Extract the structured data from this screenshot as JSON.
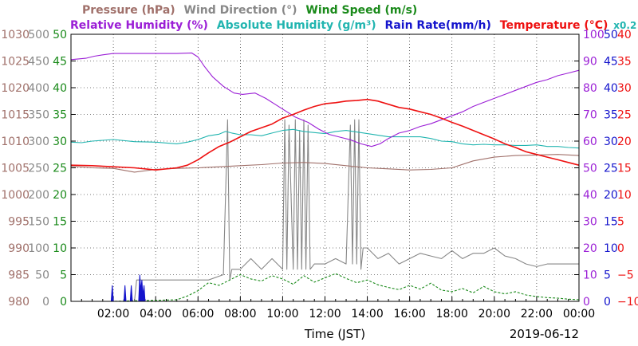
{
  "chart_data": {
    "type": "line",
    "title": "",
    "date_label": "2019-06-12",
    "xlabel": "Time (JST)",
    "x_range_hours": [
      0,
      24
    ],
    "x_ticks": [
      {
        "h": 2,
        "label": "02:00"
      },
      {
        "h": 4,
        "label": "04:00"
      },
      {
        "h": 6,
        "label": "06:00"
      },
      {
        "h": 8,
        "label": "08:00"
      },
      {
        "h": 10,
        "label": "10:00"
      },
      {
        "h": 12,
        "label": "12:00"
      },
      {
        "h": 14,
        "label": "14:00"
      },
      {
        "h": 16,
        "label": "16:00"
      },
      {
        "h": 18,
        "label": "18:00"
      },
      {
        "h": 20,
        "label": "20:00"
      },
      {
        "h": 22,
        "label": "22:00"
      },
      {
        "h": 24,
        "label": "00:00"
      }
    ],
    "legend": {
      "row1": [
        {
          "text": "Pressure (hPa)",
          "color": "#a0706a"
        },
        {
          "text": "Wind Direction (°)",
          "color": "#888888"
        },
        {
          "text": "Wind Speed (m/s)",
          "color": "#1a8a1a"
        }
      ],
      "row2": [
        {
          "text": "Relative Humidity (%)",
          "color": "#9b1fd6"
        },
        {
          "text": "Absolute Humidity (g/m³)",
          "color": "#22b5b0"
        },
        {
          "text": "Rain Rate(mm/h)",
          "color": "#1414cc"
        },
        {
          "text": "Temperature (°C)",
          "color": "#ee1111"
        },
        {
          "text": "x0.2",
          "color": "#22b5b0"
        }
      ]
    },
    "axes": {
      "pressure": {
        "color": "#a0706a",
        "range": [
          980,
          1030
        ],
        "ticks": [
          "1030",
          "1025",
          "1020",
          "1015",
          "1010",
          "1005",
          "1000",
          "995",
          "990",
          "985",
          "980"
        ]
      },
      "wind_direction": {
        "color": "#888888",
        "range": [
          0,
          500
        ],
        "ticks": [
          "500",
          "450",
          "400",
          "350",
          "300",
          "250",
          "200",
          "150",
          "100",
          "50",
          "0"
        ]
      },
      "wind_speed": {
        "color": "#1a8a1a",
        "range": [
          0,
          50
        ],
        "ticks": [
          "50",
          "45",
          "40",
          "35",
          "30",
          "25",
          "20",
          "15",
          "10",
          "5",
          "0"
        ]
      },
      "humidity": {
        "color": "#9b1fd6",
        "range": [
          0,
          100
        ],
        "ticks": [
          "100",
          "90",
          "80",
          "70",
          "60",
          "50",
          "40",
          "30",
          "20",
          "10",
          "0"
        ]
      },
      "rain_rate": {
        "color": "#1414cc",
        "range": [
          0,
          50
        ],
        "ticks": [
          "50",
          "45",
          "40",
          "35",
          "30",
          "25",
          "20",
          "15",
          "10",
          "5",
          "0"
        ]
      },
      "temperature": {
        "color": "#ee1111",
        "range": [
          -10,
          40
        ],
        "ticks": [
          "40",
          "35",
          "30",
          "25",
          "20",
          "15",
          "10",
          "5",
          "0",
          "−5",
          "−10"
        ]
      }
    },
    "series": [
      {
        "name": "Pressure (hPa)",
        "axis": "pressure",
        "color": "#a0706a",
        "x": [
          0,
          1,
          2,
          3,
          4,
          5,
          6,
          7,
          8,
          9,
          10,
          11,
          12,
          13,
          14,
          15,
          16,
          17,
          18,
          19,
          20,
          21,
          22,
          23,
          24
        ],
        "values": [
          1005.3,
          1005.0,
          1004.9,
          1004.2,
          1004.7,
          1004.9,
          1005.0,
          1005.2,
          1005.4,
          1005.6,
          1005.9,
          1006.0,
          1005.8,
          1005.4,
          1005.0,
          1004.8,
          1004.6,
          1004.7,
          1005.0,
          1006.3,
          1007.0,
          1007.3,
          1007.4,
          1007.5,
          1007.3
        ]
      },
      {
        "name": "Relative Humidity (%)",
        "axis": "humidity",
        "color": "#9b1fd6",
        "x": [
          0,
          0.7,
          1.1,
          1.5,
          2,
          3,
          4,
          5,
          5.7,
          6.0,
          6.3,
          6.7,
          7.2,
          7.7,
          8.1,
          8.7,
          9.2,
          9.7,
          10.2,
          10.6,
          11.2,
          11.7,
          12.2,
          12.7,
          13.2,
          13.7,
          14.2,
          14.6,
          15.0,
          15.5,
          16.0,
          16.5,
          17.0,
          17.5,
          18.0,
          18.5,
          19.0,
          19.5,
          20.0,
          20.5,
          21.0,
          21.5,
          22.0,
          22.5,
          23.0,
          23.5,
          24.0
        ],
        "values": [
          90.5,
          91,
          91.8,
          92.3,
          92.8,
          92.8,
          92.8,
          92.8,
          93.0,
          91.5,
          88,
          84,
          80.5,
          78,
          77.5,
          78,
          76,
          73.5,
          71,
          69,
          67,
          64.5,
          62.5,
          61.5,
          60.5,
          59,
          58,
          59,
          61,
          63,
          64,
          65.5,
          66.5,
          68,
          69.5,
          71,
          73,
          74.5,
          76,
          77.5,
          79,
          80.5,
          82,
          83,
          84.5,
          85.5,
          86.5
        ]
      },
      {
        "name": "Absolute Humidity (g/m³)",
        "axis": "wind_direction",
        "color": "#22b5b0",
        "x": [
          0,
          0.5,
          1,
          2,
          3,
          4,
          5,
          5.5,
          6,
          6.5,
          7,
          7.3,
          7.6,
          8,
          8.5,
          9,
          9.5,
          10,
          10.5,
          11,
          11.5,
          12,
          12.5,
          13,
          13.5,
          14,
          14.5,
          15,
          15.5,
          16,
          16.5,
          17,
          17.5,
          18,
          18.5,
          19,
          19.5,
          20,
          20.5,
          21,
          21.5,
          22,
          22.5,
          23,
          23.5,
          24
        ],
        "values": [
          298,
          297,
          300,
          303,
          299,
          298,
          295,
          298,
          303,
          310,
          313,
          318,
          315,
          312,
          312,
          310,
          315,
          320,
          322,
          318,
          316,
          314,
          318,
          320,
          317,
          314,
          311,
          308,
          308,
          308,
          308,
          305,
          300,
          299,
          295,
          293,
          294,
          293,
          293,
          292,
          292,
          293,
          290,
          290,
          288,
          287
        ]
      },
      {
        "name": "Temperature (°C)",
        "axis": "temperature",
        "color": "#ee1111",
        "x": [
          0,
          1,
          2,
          3,
          4,
          5,
          5.5,
          6,
          6.5,
          7,
          7.5,
          8,
          8.5,
          9,
          9.5,
          10,
          10.5,
          11,
          11.5,
          12,
          12.5,
          13,
          13.5,
          14,
          14.5,
          15,
          15.5,
          16,
          16.5,
          17,
          17.5,
          18,
          18.5,
          19,
          19.5,
          20,
          20.5,
          21,
          21.5,
          22,
          22.5,
          23,
          23.5,
          24
        ],
        "values": [
          15.5,
          15.4,
          15.2,
          15.0,
          14.6,
          15.0,
          15.5,
          16.5,
          17.8,
          19,
          19.8,
          20.8,
          21.8,
          22.5,
          23.2,
          24.3,
          25.0,
          25.8,
          26.5,
          27.0,
          27.2,
          27.5,
          27.6,
          27.8,
          27.5,
          26.9,
          26.3,
          26.0,
          25.5,
          25.0,
          24.3,
          23.5,
          22.8,
          22.0,
          21.2,
          20.4,
          19.5,
          18.8,
          18.0,
          17.5,
          17.0,
          16.5,
          16.0,
          15.5
        ]
      },
      {
        "name": "Wind Speed (m/s)",
        "axis": "wind_speed",
        "color": "#1a8a1a",
        "x": [
          0,
          1,
          2,
          3,
          4,
          5,
          5.5,
          6,
          6.5,
          7,
          7.5,
          8,
          8.5,
          9,
          9.5,
          10,
          10.5,
          11,
          11.5,
          12,
          12.5,
          13,
          13.5,
          14,
          14.5,
          15,
          15.5,
          16,
          16.5,
          17,
          17.5,
          18,
          18.5,
          19,
          19.5,
          20,
          20.5,
          21,
          21.5,
          22,
          22.5,
          23,
          23.5,
          24
        ],
        "values": [
          0,
          0,
          0,
          0.1,
          0.2,
          0.3,
          1.0,
          2.0,
          3.5,
          3.0,
          4.0,
          5.0,
          4.2,
          3.8,
          4.8,
          4.2,
          3.2,
          4.8,
          3.6,
          4.4,
          5.2,
          4.3,
          3.5,
          4.0,
          3.1,
          2.6,
          2.2,
          3.0,
          2.3,
          3.4,
          2.1,
          1.8,
          2.4,
          1.6,
          2.8,
          1.8,
          1.4,
          1.8,
          1.2,
          0.9,
          0.7,
          0.6,
          0.4,
          0.3
        ]
      },
      {
        "name": "Wind Direction (°)",
        "axis": "wind_direction",
        "color": "#888888",
        "x": [
          0,
          3,
          3.1,
          3.5,
          6,
          6.5,
          7.2,
          7.4,
          7.5,
          7.6,
          8.0,
          8.5,
          9.0,
          9.5,
          10.0,
          10.1,
          10.2,
          10.3,
          10.5,
          10.6,
          10.7,
          10.8,
          10.9,
          11.0,
          11.1,
          11.2,
          11.3,
          11.5,
          12,
          12.5,
          13.0,
          13.2,
          13.3,
          13.4,
          13.5,
          13.6,
          13.7,
          13.8,
          14,
          14.5,
          15,
          15.5,
          16,
          16.5,
          17,
          17.5,
          18,
          18.5,
          19,
          19.5,
          20,
          20.5,
          21,
          21.5,
          22,
          22.5,
          23,
          23.5,
          24
        ],
        "values": [
          0,
          0,
          40,
          40,
          40,
          40,
          50,
          340,
          40,
          60,
          60,
          80,
          60,
          80,
          60,
          340,
          60,
          330,
          60,
          340,
          60,
          320,
          60,
          340,
          60,
          330,
          60,
          70,
          70,
          80,
          70,
          330,
          70,
          340,
          70,
          340,
          60,
          100,
          100,
          80,
          90,
          70,
          80,
          90,
          85,
          80,
          95,
          80,
          90,
          90,
          100,
          85,
          80,
          70,
          65,
          70,
          70,
          70,
          70
        ]
      },
      {
        "name": "Rain Rate(mm/h)",
        "axis": "rain_rate",
        "color": "#1414cc",
        "x": [
          1.9,
          1.95,
          2.0,
          2.5,
          2.55,
          2.6,
          2.8,
          2.85,
          2.9,
          3.2,
          3.25,
          3.3,
          3.35,
          3.4,
          3.45,
          3.5
        ],
        "values": [
          0,
          3,
          0,
          0,
          3,
          0,
          0,
          3,
          0,
          0,
          5,
          2,
          4,
          1,
          3,
          0
        ]
      }
    ]
  }
}
